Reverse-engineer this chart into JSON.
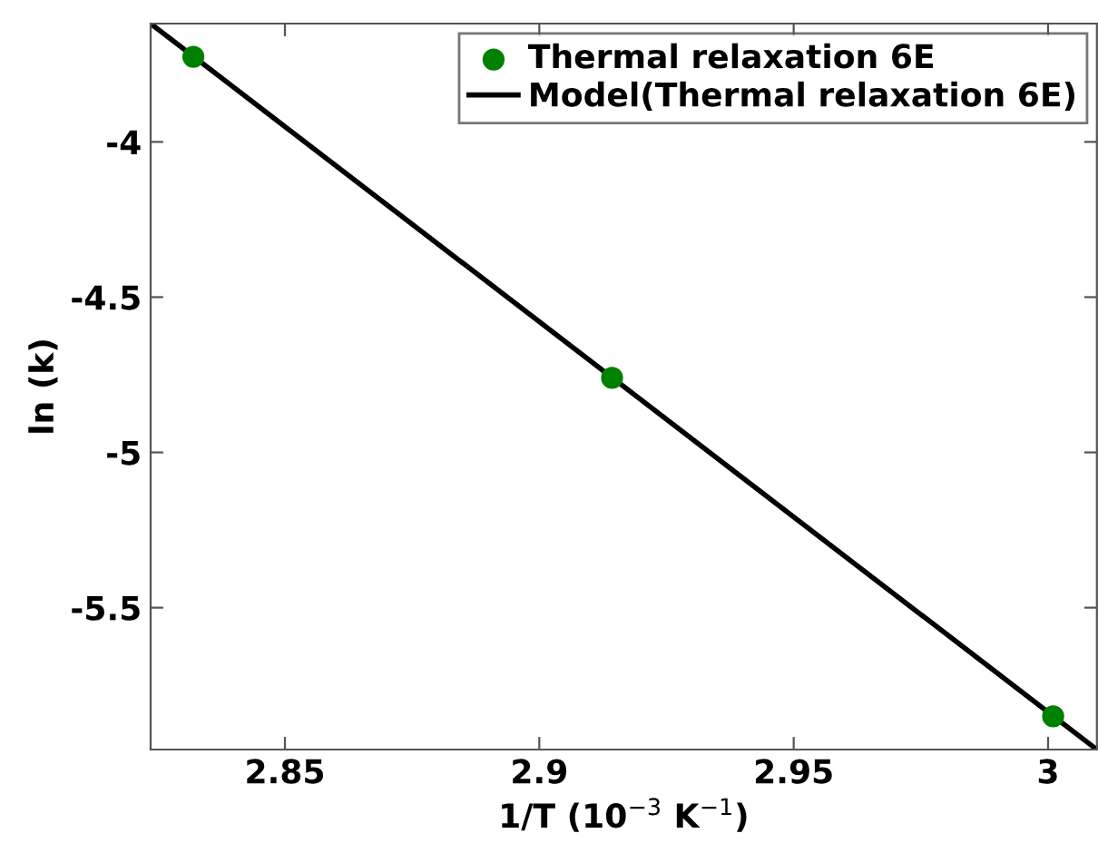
{
  "chart_data": {
    "type": "scatter",
    "xlabel": "1/T (10$^{−3}$ K$^{−1}$)",
    "ylabel": "ln (k)",
    "xlim": [
      2.8236,
      3.0096
    ],
    "ylim": [
      -5.957,
      -3.619
    ],
    "xticks": [
      2.85,
      2.9,
      2.95,
      3
    ],
    "yticks": [
      -5.5,
      -5,
      -4.5,
      -4
    ],
    "grid": false,
    "legend": "top right",
    "marker": "circle",
    "series": [
      {
        "name": "Thermal relaxation 6E",
        "color": "#008000",
        "x": [
          2.832,
          2.9143,
          3.001
        ],
        "values": [
          -3.726,
          -4.76,
          -5.85
        ]
      },
      {
        "name": "Model(Thermal relaxation 6E)",
        "type": "line",
        "color": "#000000",
        "line_style": "solid",
        "marker": "none",
        "x": [
          2.8236,
          3.0096
        ],
        "values": [
          -3.619,
          -5.957
        ]
      }
    ]
  }
}
